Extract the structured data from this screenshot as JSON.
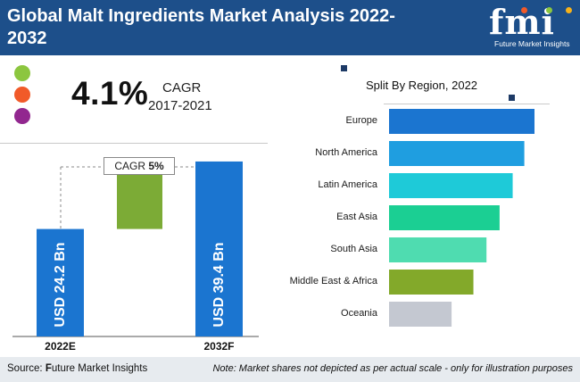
{
  "header": {
    "title": "Global Malt Ingredients Market Analysis 2022-2032",
    "logo_text": "fmi",
    "logo_subtitle": "Future Market Insights",
    "colors": {
      "header_bg": "#1d4f8a"
    }
  },
  "cagr_panel": {
    "value": "4.1%",
    "label": "CAGR",
    "period": "2017-2021",
    "dots": [
      "#8cc63f",
      "#f15a29",
      "#92278f"
    ]
  },
  "chart_data": [
    {
      "type": "bar",
      "categories": [
        "2022E",
        "2032F"
      ],
      "values": [
        24.2,
        39.4
      ],
      "value_labels": [
        "USD 24.2 Bn",
        "USD 39.4 Bn"
      ],
      "unit": "USD Bn",
      "annotation": {
        "prefix": "CAGR ",
        "value": "5%"
      },
      "ylim": [
        0,
        42
      ],
      "colors": {
        "bars": "#1b75d0",
        "increment": "#7cab36"
      }
    },
    {
      "type": "bar",
      "orientation": "horizontal",
      "title": "Split By Region, 2022",
      "categories": [
        "Europe",
        "North America",
        "Latin America",
        "East Asia",
        "South Asia",
        "Middle East & Africa",
        "Oceania"
      ],
      "values": [
        100,
        93,
        85,
        76,
        67,
        58,
        43
      ],
      "colors": [
        "#1b75d0",
        "#1f9ee0",
        "#1ecad8",
        "#1bcf93",
        "#4fdcb0",
        "#83a92a",
        "#c4c8d1"
      ]
    }
  ],
  "footer": {
    "source_prefix": "Source: ",
    "source_first_letter": "F",
    "source_rest": "uture Market Insights",
    "note": "Note: Market shares not depicted as per actual scale - only for illustration purposes"
  }
}
